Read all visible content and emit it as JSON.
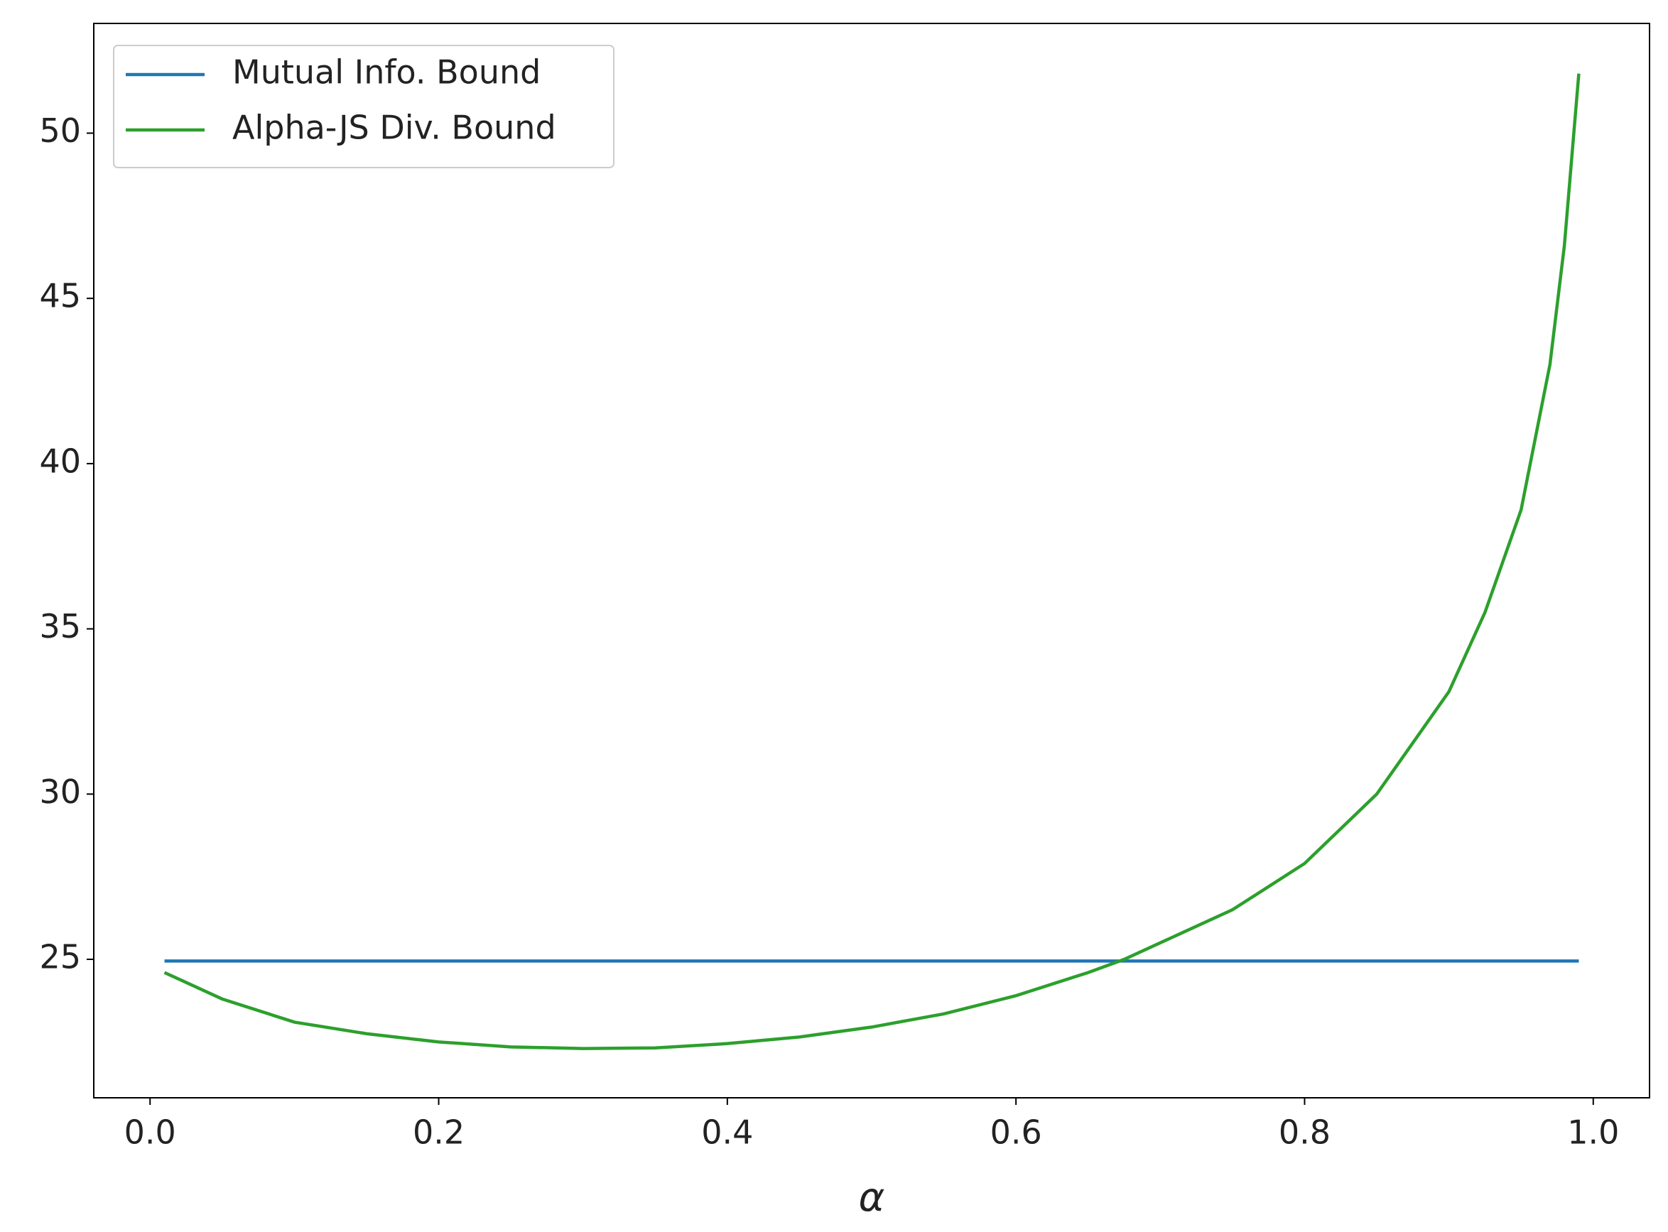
{
  "chart_data": {
    "type": "line",
    "x_label": "α",
    "xlim": [
      -0.039,
      1.039
    ],
    "ylim": [
      20.81,
      53.32
    ],
    "xticks": [
      {
        "value": 0,
        "label": "0.0"
      },
      0.2,
      0.4,
      0.6,
      0.8,
      {
        "value": 1,
        "label": "1.0"
      }
    ],
    "yticks": [
      25,
      30,
      35,
      40,
      45,
      50
    ],
    "legend": "upper left",
    "series": [
      {
        "name": "Mutual Info. Bound",
        "color": "#1f77b4",
        "x": [
          0.01,
          0.99
        ],
        "values": [
          24.95,
          24.95
        ]
      },
      {
        "name": "Alpha-JS Div. Bound",
        "color": "#2ca02c",
        "x": [
          0.01,
          0.05,
          0.1,
          0.15,
          0.2,
          0.25,
          0.3,
          0.35,
          0.4,
          0.45,
          0.5,
          0.55,
          0.6,
          0.65,
          0.675,
          0.7,
          0.75,
          0.8,
          0.85,
          0.9,
          0.925,
          0.95,
          0.97,
          0.98,
          0.99
        ],
        "values": [
          24.6,
          23.8,
          23.1,
          22.75,
          22.5,
          22.35,
          22.3,
          22.32,
          22.45,
          22.65,
          22.95,
          23.35,
          23.9,
          24.6,
          25.0,
          25.5,
          26.5,
          27.9,
          30.0,
          33.1,
          35.5,
          38.6,
          43.0,
          46.6,
          51.8
        ]
      }
    ]
  }
}
